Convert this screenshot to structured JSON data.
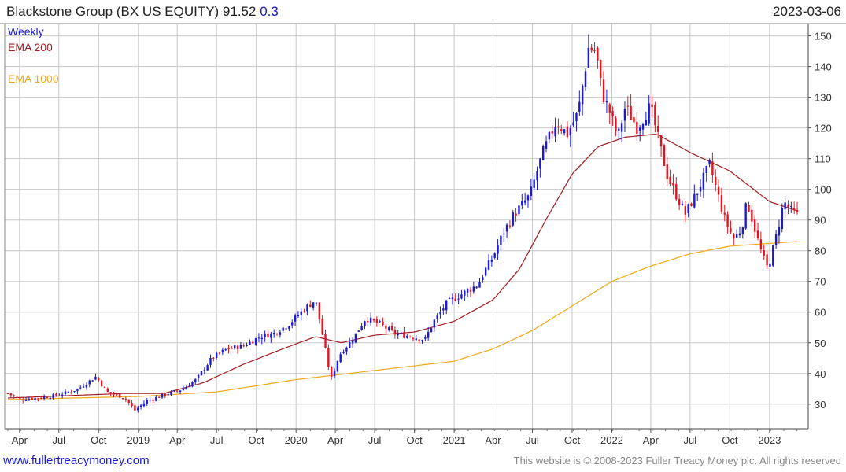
{
  "header": {
    "title": "Blackstone Group (BX US EQUITY) 91.52",
    "change": "0.3",
    "date": "2023-03-06"
  },
  "footer": {
    "site": "www.fullertreacymoney.com",
    "copyright": "This website is © 2008-2023 Fuller Treacy Money plc. All rights reserved"
  },
  "colors": {
    "up": "#1a1ad6",
    "down": "#e0141e",
    "ema200": "#a01c22",
    "ema1000": "#f0a81a",
    "grid": "#c8c8c8"
  },
  "chart_data": {
    "type": "candlestick",
    "interval": "Weekly",
    "legend": [
      {
        "name": "Weekly",
        "color": "#1a1ad6"
      },
      {
        "name": "EMA 200",
        "color": "#a01c22"
      },
      {
        "name": "EMA 1000",
        "color": "#f0a81a"
      }
    ],
    "ylim": [
      22,
      154
    ],
    "y_ticks": [
      30,
      40,
      50,
      60,
      70,
      80,
      90,
      100,
      110,
      120,
      130,
      140,
      150
    ],
    "x_start": "2018-03-05",
    "x_end": "2023-03-06",
    "x_ticks": [
      {
        "label": "Apr",
        "date": "2018-04-01"
      },
      {
        "label": "Jul",
        "date": "2018-07-01"
      },
      {
        "label": "Oct",
        "date": "2018-10-01"
      },
      {
        "label": "2019",
        "date": "2019-01-01"
      },
      {
        "label": "Apr",
        "date": "2019-04-01"
      },
      {
        "label": "Jul",
        "date": "2019-07-01"
      },
      {
        "label": "Oct",
        "date": "2019-10-01"
      },
      {
        "label": "2020",
        "date": "2020-01-01"
      },
      {
        "label": "Apr",
        "date": "2020-04-01"
      },
      {
        "label": "Jul",
        "date": "2020-07-01"
      },
      {
        "label": "Oct",
        "date": "2020-10-01"
      },
      {
        "label": "2021",
        "date": "2021-01-01"
      },
      {
        "label": "Apr",
        "date": "2021-04-01"
      },
      {
        "label": "Jul",
        "date": "2021-07-01"
      },
      {
        "label": "Oct",
        "date": "2021-10-01"
      },
      {
        "label": "2022",
        "date": "2022-01-01"
      },
      {
        "label": "Apr",
        "date": "2022-04-01"
      },
      {
        "label": "Jul",
        "date": "2022-07-01"
      },
      {
        "label": "Oct",
        "date": "2022-10-01"
      },
      {
        "label": "2023",
        "date": "2023-01-01"
      }
    ],
    "weekly_close_anchors": [
      {
        "date": "2018-03-05",
        "close": 33.5
      },
      {
        "date": "2018-04-01",
        "close": 31.5
      },
      {
        "date": "2018-05-15",
        "close": 32.0
      },
      {
        "date": "2018-07-01",
        "close": 33.0
      },
      {
        "date": "2018-08-15",
        "close": 35.0
      },
      {
        "date": "2018-09-25",
        "close": 39.0
      },
      {
        "date": "2018-10-20",
        "close": 34.0
      },
      {
        "date": "2018-12-01",
        "close": 32.0
      },
      {
        "date": "2018-12-24",
        "close": 28.0
      },
      {
        "date": "2019-01-20",
        "close": 31.0
      },
      {
        "date": "2019-03-01",
        "close": 33.0
      },
      {
        "date": "2019-04-15",
        "close": 35.0
      },
      {
        "date": "2019-05-15",
        "close": 38.0
      },
      {
        "date": "2019-06-20",
        "close": 45.0
      },
      {
        "date": "2019-07-25",
        "close": 48.0
      },
      {
        "date": "2019-09-01",
        "close": 49.0
      },
      {
        "date": "2019-10-10",
        "close": 52.0
      },
      {
        "date": "2019-11-10",
        "close": 53.0
      },
      {
        "date": "2019-12-15",
        "close": 56.0
      },
      {
        "date": "2020-01-20",
        "close": 61.0
      },
      {
        "date": "2020-02-15",
        "close": 64.0
      },
      {
        "date": "2020-02-28",
        "close": 55.0
      },
      {
        "date": "2020-03-22",
        "close": 38.0
      },
      {
        "date": "2020-04-10",
        "close": 46.0
      },
      {
        "date": "2020-05-10",
        "close": 51.0
      },
      {
        "date": "2020-06-10",
        "close": 58.0
      },
      {
        "date": "2020-07-15",
        "close": 56.0
      },
      {
        "date": "2020-08-15",
        "close": 53.0
      },
      {
        "date": "2020-09-25",
        "close": 52.0
      },
      {
        "date": "2020-10-25",
        "close": 51.0
      },
      {
        "date": "2020-11-15",
        "close": 57.0
      },
      {
        "date": "2020-12-15",
        "close": 63.0
      },
      {
        "date": "2021-01-20",
        "close": 66.0
      },
      {
        "date": "2021-02-25",
        "close": 69.0
      },
      {
        "date": "2021-03-15",
        "close": 74.0
      },
      {
        "date": "2021-04-01",
        "close": 78.0
      },
      {
        "date": "2021-04-25",
        "close": 86.0
      },
      {
        "date": "2021-05-20",
        "close": 92.0
      },
      {
        "date": "2021-06-25",
        "close": 98.0
      },
      {
        "date": "2021-07-25",
        "close": 112.0
      },
      {
        "date": "2021-08-25",
        "close": 122.0
      },
      {
        "date": "2021-09-20",
        "close": 118.0
      },
      {
        "date": "2021-10-15",
        "close": 125.0
      },
      {
        "date": "2021-11-08",
        "close": 146.0
      },
      {
        "date": "2021-11-25",
        "close": 145.0
      },
      {
        "date": "2021-12-10",
        "close": 131.0
      },
      {
        "date": "2021-12-25",
        "close": 126.0
      },
      {
        "date": "2022-01-15",
        "close": 117.0
      },
      {
        "date": "2022-02-01",
        "close": 127.0
      },
      {
        "date": "2022-03-01",
        "close": 120.0
      },
      {
        "date": "2022-03-31",
        "close": 127.0
      },
      {
        "date": "2022-05-10",
        "close": 104.0
      },
      {
        "date": "2022-06-20",
        "close": 92.0
      },
      {
        "date": "2022-07-20",
        "close": 100.0
      },
      {
        "date": "2022-08-15",
        "close": 108.0
      },
      {
        "date": "2022-09-20",
        "close": 90.0
      },
      {
        "date": "2022-10-10",
        "close": 84.0
      },
      {
        "date": "2022-10-28",
        "close": 87.0
      },
      {
        "date": "2022-11-10",
        "close": 96.0
      },
      {
        "date": "2022-11-30",
        "close": 86.0
      },
      {
        "date": "2022-12-14",
        "close": 79.0
      },
      {
        "date": "2022-12-28",
        "close": 74.0
      },
      {
        "date": "2023-01-15",
        "close": 84.0
      },
      {
        "date": "2023-02-03",
        "close": 96.0
      },
      {
        "date": "2023-02-20",
        "close": 93.0
      },
      {
        "date": "2023-03-06",
        "close": 91.52
      }
    ],
    "ema200_anchors": [
      {
        "date": "2018-03-05",
        "value": 32.0
      },
      {
        "date": "2018-09-01",
        "value": 33.0
      },
      {
        "date": "2018-12-01",
        "value": 33.5
      },
      {
        "date": "2019-03-01",
        "value": 33.5
      },
      {
        "date": "2019-06-01",
        "value": 37.0
      },
      {
        "date": "2019-09-01",
        "value": 43.0
      },
      {
        "date": "2019-12-01",
        "value": 48.0
      },
      {
        "date": "2020-02-15",
        "value": 52.0
      },
      {
        "date": "2020-04-15",
        "value": 50.0
      },
      {
        "date": "2020-07-01",
        "value": 52.5
      },
      {
        "date": "2020-10-01",
        "value": 53.5
      },
      {
        "date": "2021-01-01",
        "value": 57.0
      },
      {
        "date": "2021-04-01",
        "value": 64.0
      },
      {
        "date": "2021-06-01",
        "value": 74.0
      },
      {
        "date": "2021-08-01",
        "value": 90.0
      },
      {
        "date": "2021-10-01",
        "value": 105.0
      },
      {
        "date": "2021-12-01",
        "value": 114.0
      },
      {
        "date": "2022-02-01",
        "value": 117.0
      },
      {
        "date": "2022-04-15",
        "value": 118.0
      },
      {
        "date": "2022-07-01",
        "value": 112.0
      },
      {
        "date": "2022-10-01",
        "value": 106.0
      },
      {
        "date": "2023-01-01",
        "value": 96.0
      },
      {
        "date": "2023-03-06",
        "value": 93.0
      }
    ],
    "ema1000_anchors": [
      {
        "date": "2018-03-05",
        "value": 31.5
      },
      {
        "date": "2019-01-01",
        "value": 32.5
      },
      {
        "date": "2019-07-01",
        "value": 34.0
      },
      {
        "date": "2020-01-01",
        "value": 38.0
      },
      {
        "date": "2020-07-01",
        "value": 41.0
      },
      {
        "date": "2021-01-01",
        "value": 44.0
      },
      {
        "date": "2021-04-01",
        "value": 48.0
      },
      {
        "date": "2021-07-01",
        "value": 54.0
      },
      {
        "date": "2021-10-01",
        "value": 62.0
      },
      {
        "date": "2022-01-01",
        "value": 70.0
      },
      {
        "date": "2022-04-01",
        "value": 75.0
      },
      {
        "date": "2022-07-01",
        "value": 79.0
      },
      {
        "date": "2022-10-01",
        "value": 81.5
      },
      {
        "date": "2023-03-06",
        "value": 83.0
      }
    ]
  }
}
